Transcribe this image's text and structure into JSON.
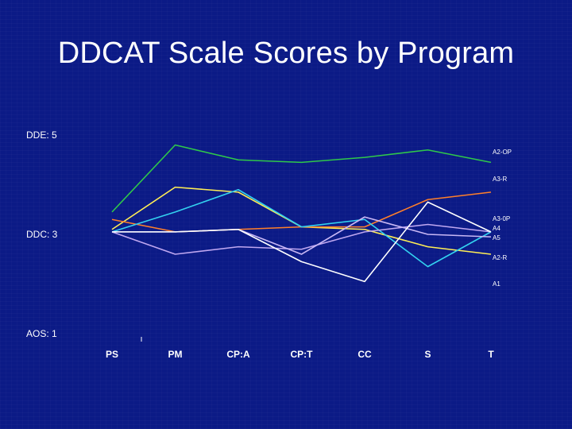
{
  "slide": {
    "title": "DDCAT Scale Scores by Program"
  },
  "chart_data": {
    "type": "line",
    "title": "DDCAT Scale Scores by Program",
    "categories": [
      "PS",
      "PM",
      "CP:A",
      "CP:T",
      "CC",
      "S",
      "T"
    ],
    "y_ticks": [
      {
        "value": 5,
        "label": "DDE: 5"
      },
      {
        "value": 3,
        "label": "DDC: 3"
      },
      {
        "value": 1,
        "label": "AOS:  1"
      }
    ],
    "ylim": [
      1,
      5
    ],
    "series": [
      {
        "name": "A2-OP",
        "color": "#2fc84a",
        "values": [
          3.45,
          4.8,
          4.5,
          4.45,
          4.55,
          4.7,
          4.45
        ]
      },
      {
        "name": "A3-R",
        "color": "#ffee55",
        "values": [
          3.1,
          3.95,
          3.85,
          3.15,
          3.1,
          2.75,
          2.6
        ]
      },
      {
        "name": "A3-0P",
        "color": "#ff7f2a",
        "values": [
          3.3,
          3.05,
          3.1,
          3.15,
          3.15,
          3.7,
          3.85
        ]
      },
      {
        "name": "A4",
        "color": "#33d2f0",
        "values": [
          3.05,
          3.45,
          3.9,
          3.15,
          3.3,
          2.35,
          3.05
        ]
      },
      {
        "name": "A5",
        "color": "#bfa7f0",
        "values": [
          3.05,
          2.6,
          2.75,
          2.7,
          3.05,
          3.2,
          3.05
        ]
      },
      {
        "name": "A2-R",
        "color": "#c9b8f5",
        "values": [
          3.05,
          3.05,
          3.1,
          2.6,
          3.35,
          3.0,
          2.95
        ]
      },
      {
        "name": "A1",
        "color": "#ffffff",
        "values": [
          3.05,
          3.05,
          3.1,
          2.45,
          2.05,
          3.65,
          3.05
        ]
      }
    ],
    "series_label_positions_note": "",
    "grid": false,
    "legend": "right-end labels"
  }
}
